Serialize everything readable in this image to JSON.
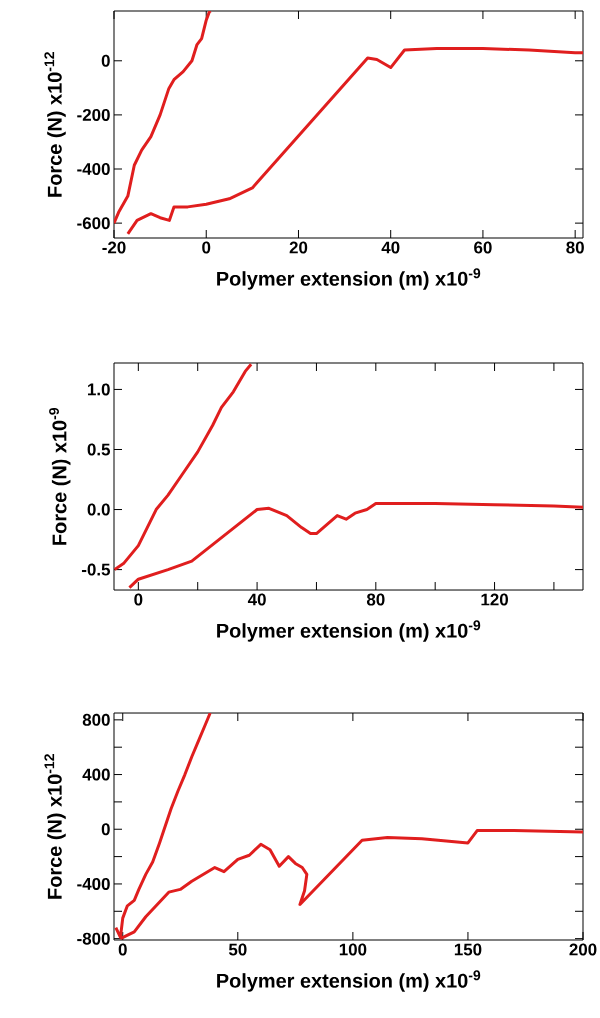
{
  "chart_data": [
    {
      "type": "line",
      "xlabel": "Polymer extension (m) x10$^{-9}$",
      "ylabel": "Force (N) x10$^{-12}$",
      "xlim": [
        -20,
        81.7
      ],
      "ylim": [
        -655,
        184
      ],
      "xticks": [
        -20,
        0,
        20,
        40,
        60,
        80
      ],
      "yticks": [
        -600,
        -400,
        -200,
        0
      ],
      "series": [
        {
          "color": "#e01e1e",
          "x": [
            -20,
            -19,
            -17,
            -15.6,
            -14,
            -12,
            -10,
            -8.1,
            -7,
            -5,
            -3.1,
            -2,
            -1,
            0,
            0.7,
            1
          ],
          "values": [
            -600,
            -560,
            -500,
            -386,
            -330,
            -280,
            -200,
            -102,
            -70,
            -40,
            0,
            60,
            82,
            150,
            182,
            184
          ]
        },
        {
          "color": "#e01e1e",
          "x": [
            -17,
            -15,
            -12,
            -10,
            -8,
            -7,
            -4,
            0,
            5,
            10,
            35,
            37,
            40,
            43,
            50,
            60,
            70,
            80,
            81.7
          ],
          "values": [
            -640,
            -590,
            -565,
            -580,
            -590,
            -540,
            -540,
            -530,
            -510,
            -470,
            10,
            5,
            -25,
            40,
            45,
            45,
            40,
            30,
            30
          ]
        }
      ]
    },
    {
      "type": "line",
      "xlabel": "Polymer extension (m) x10$^{-9}$",
      "ylabel": "Force (N) x10$^{-9}$",
      "xlim": [
        -8.2,
        149.8
      ],
      "ylim": [
        -0.67,
        1.22
      ],
      "xticks": [
        0,
        {
          "value": 20,
          "label": null
        },
        40,
        {
          "value": 60,
          "label": null
        },
        80,
        {
          "value": 100,
          "label": null
        },
        120,
        {
          "value": 140,
          "label": null
        }
      ],
      "yticks": [
        {
          "value": -0.5,
          "label": "-0.5"
        },
        {
          "value": 0,
          "label": "0.0"
        },
        0.5,
        {
          "value": 1,
          "label": "1.0"
        }
      ],
      "series": [
        {
          "color": "#e01e1e",
          "x": [
            -8,
            -5,
            0,
            3,
            6,
            10,
            15,
            20,
            25,
            28,
            32,
            36,
            38
          ],
          "values": [
            -0.5,
            -0.45,
            -0.3,
            -0.15,
            0.0,
            0.12,
            0.3,
            0.48,
            0.7,
            0.85,
            0.98,
            1.15,
            1.21
          ]
        },
        {
          "color": "#e01e1e",
          "x": [
            -3,
            0,
            5,
            10,
            18,
            40,
            44,
            50,
            55,
            58,
            60,
            67,
            70,
            73,
            77,
            80,
            100,
            120,
            140,
            149.8
          ],
          "values": [
            -0.65,
            -0.58,
            -0.54,
            -0.5,
            -0.43,
            0.0,
            0.01,
            -0.05,
            -0.15,
            -0.2,
            -0.2,
            -0.05,
            -0.08,
            -0.03,
            0.0,
            0.05,
            0.05,
            0.04,
            0.03,
            0.02
          ]
        }
      ]
    },
    {
      "type": "line",
      "xlabel": "Polymer extension (m) x10$^{-9}$",
      "ylabel": "Force (N) x10$^{-12}$",
      "xlim": [
        -3.8,
        200
      ],
      "ylim": [
        -810,
        850
      ],
      "xticks": [
        0,
        50,
        100,
        150,
        200
      ],
      "yticks": [
        -800,
        {
          "value": -600,
          "label": null
        },
        -400,
        {
          "value": -200,
          "label": null
        },
        0,
        {
          "value": 200,
          "label": null
        },
        400,
        {
          "value": 600,
          "label": null
        },
        800
      ],
      "series": [
        {
          "color": "#e01e1e",
          "x": [
            -3,
            -1,
            0,
            2,
            5,
            7,
            10,
            13,
            16,
            18,
            21,
            24,
            27,
            30,
            33,
            36,
            38
          ],
          "values": [
            -720,
            -790,
            -650,
            -560,
            -520,
            -440,
            -330,
            -240,
            -100,
            0,
            150,
            280,
            400,
            530,
            650,
            770,
            850
          ]
        },
        {
          "color": "#e01e1e",
          "x": [
            -1,
            5,
            10,
            20,
            25,
            30,
            40,
            44,
            50,
            55,
            60,
            64,
            68,
            72,
            75,
            78,
            80,
            79,
            77,
            104,
            115,
            130,
            150,
            154,
            170,
            200
          ],
          "values": [
            -800,
            -750,
            -640,
            -460,
            -440,
            -380,
            -280,
            -310,
            -220,
            -190,
            -110,
            -150,
            -270,
            -200,
            -250,
            -280,
            -330,
            -450,
            -550,
            -80,
            -60,
            -70,
            -100,
            -10,
            -10,
            -20
          ]
        }
      ]
    }
  ]
}
